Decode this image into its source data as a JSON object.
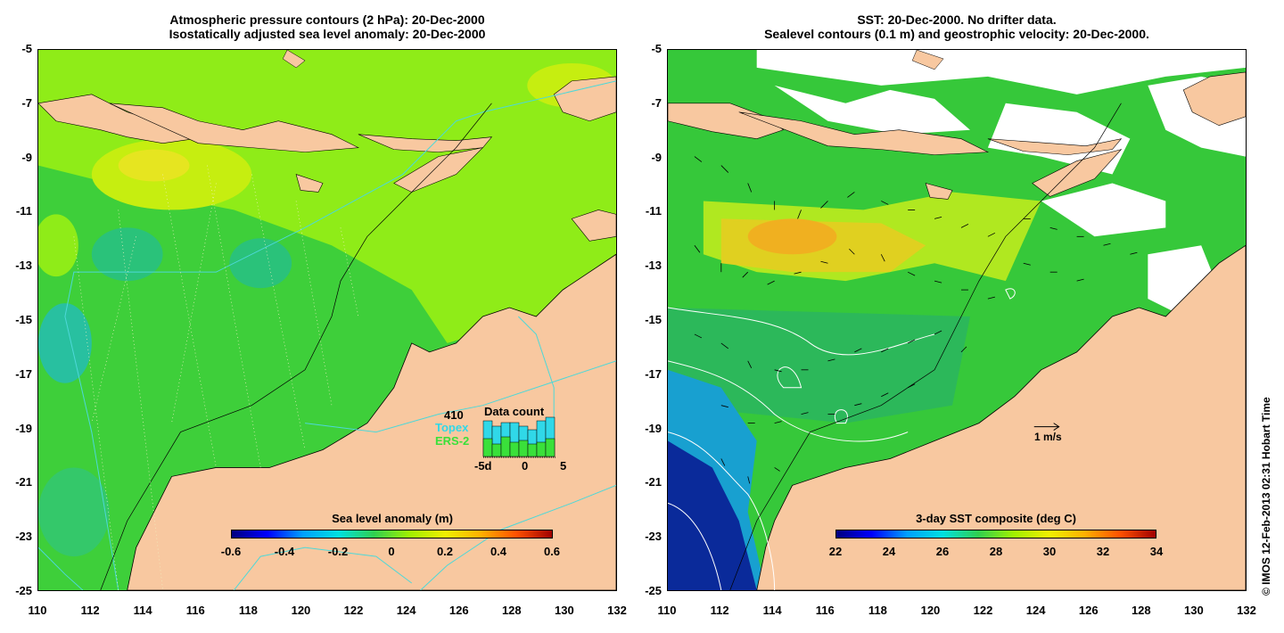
{
  "left_panel": {
    "title_line1": "Atmospheric pressure contours (2 hPa): 20-Dec-2000",
    "title_line2": "Isostatically adjusted sea level anomaly: 20-Dec-2000",
    "colorbar_label": "Sea level anomaly (m)",
    "colorbar_ticks": [
      "-0.6",
      "-0.4",
      "-0.2",
      "0",
      "0.2",
      "0.4",
      "0.6"
    ],
    "data_count": {
      "number": "410",
      "title": "Data count",
      "series1": "Topex",
      "series2": "ERS-2",
      "axis_ticks": [
        "-5d",
        "0",
        "5"
      ]
    }
  },
  "right_panel": {
    "title_line1": "SST: 20-Dec-2000. No drifter data.",
    "title_line2": "Sealevel contours (0.1 m) and geostrophic velocity: 20-Dec-2000.",
    "colorbar_label": "3-day SST composite (deg C)",
    "colorbar_ticks": [
      "22",
      "24",
      "26",
      "28",
      "30",
      "32",
      "34"
    ],
    "velocity_scale": "1 m/s"
  },
  "y_ticks": [
    "-5",
    "-7",
    "-9",
    "-11",
    "-13",
    "-15",
    "-17",
    "-19",
    "-21",
    "-23",
    "-25"
  ],
  "x_ticks": [
    "110",
    "112",
    "114",
    "116",
    "118",
    "120",
    "122",
    "124",
    "126",
    "128",
    "130",
    "132"
  ],
  "copyright": "© IMOS 12-Feb-2013 02:31 Hobart Time",
  "colors": {
    "land": "#f8c8a0",
    "ocean_mid": "#3ecf3a",
    "ocean_light": "#8fec18",
    "ocean_high": "#d8f010",
    "contour": "#4dd8d8",
    "sst_cold": "#0a2a9a",
    "sst_warm": "#f0b020"
  }
}
